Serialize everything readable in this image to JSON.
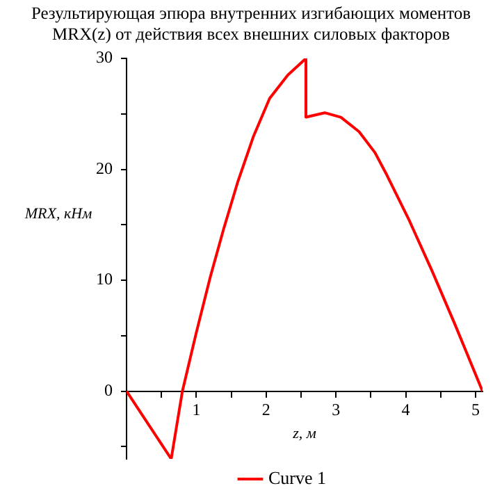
{
  "chart_data": {
    "type": "line",
    "title": [
      "Результирующая эпюра внутренних изгибающих моментов",
      "MRX(z) от действия всех внешних силовых факторов"
    ],
    "xlabel": "z, м",
    "ylabel": "MRX, кНм",
    "series": [
      {
        "name": "Curve 1",
        "color": "#ff0000",
        "x": [
          0,
          0.64,
          0.8,
          1.0,
          1.2,
          1.39,
          1.59,
          1.82,
          2.05,
          2.31,
          2.57,
          2.57,
          2.84,
          3.07,
          3.33,
          3.56,
          3.72,
          4.05,
          4.38,
          4.7,
          5.1
        ],
        "values": [
          0,
          -6.1,
          0,
          5.3,
          10.3,
          14.6,
          18.8,
          23,
          26.4,
          28.5,
          30,
          24.7,
          25.1,
          24.7,
          23.4,
          21.5,
          19.6,
          15.4,
          10.8,
          6.1,
          0
        ]
      }
    ],
    "xlim": [
      0,
      5.1
    ],
    "ylim": [
      -6.1,
      30
    ],
    "xticks": [
      {
        "value": 0.5,
        "label": null
      },
      1,
      {
        "value": 1.5,
        "label": null
      },
      2,
      {
        "value": 2.5,
        "label": null
      },
      3,
      {
        "value": 3.5,
        "label": null
      },
      4,
      {
        "value": 4.5,
        "label": null
      },
      5
    ],
    "yticks": [
      {
        "value": -5,
        "label": null
      },
      0,
      {
        "value": 5,
        "label": null
      },
      10,
      {
        "value": 15,
        "label": null
      },
      20,
      {
        "value": 25,
        "label": null
      },
      30
    ],
    "grid": false,
    "legend": "bottom",
    "marker": "none",
    "line_style": "solid"
  }
}
